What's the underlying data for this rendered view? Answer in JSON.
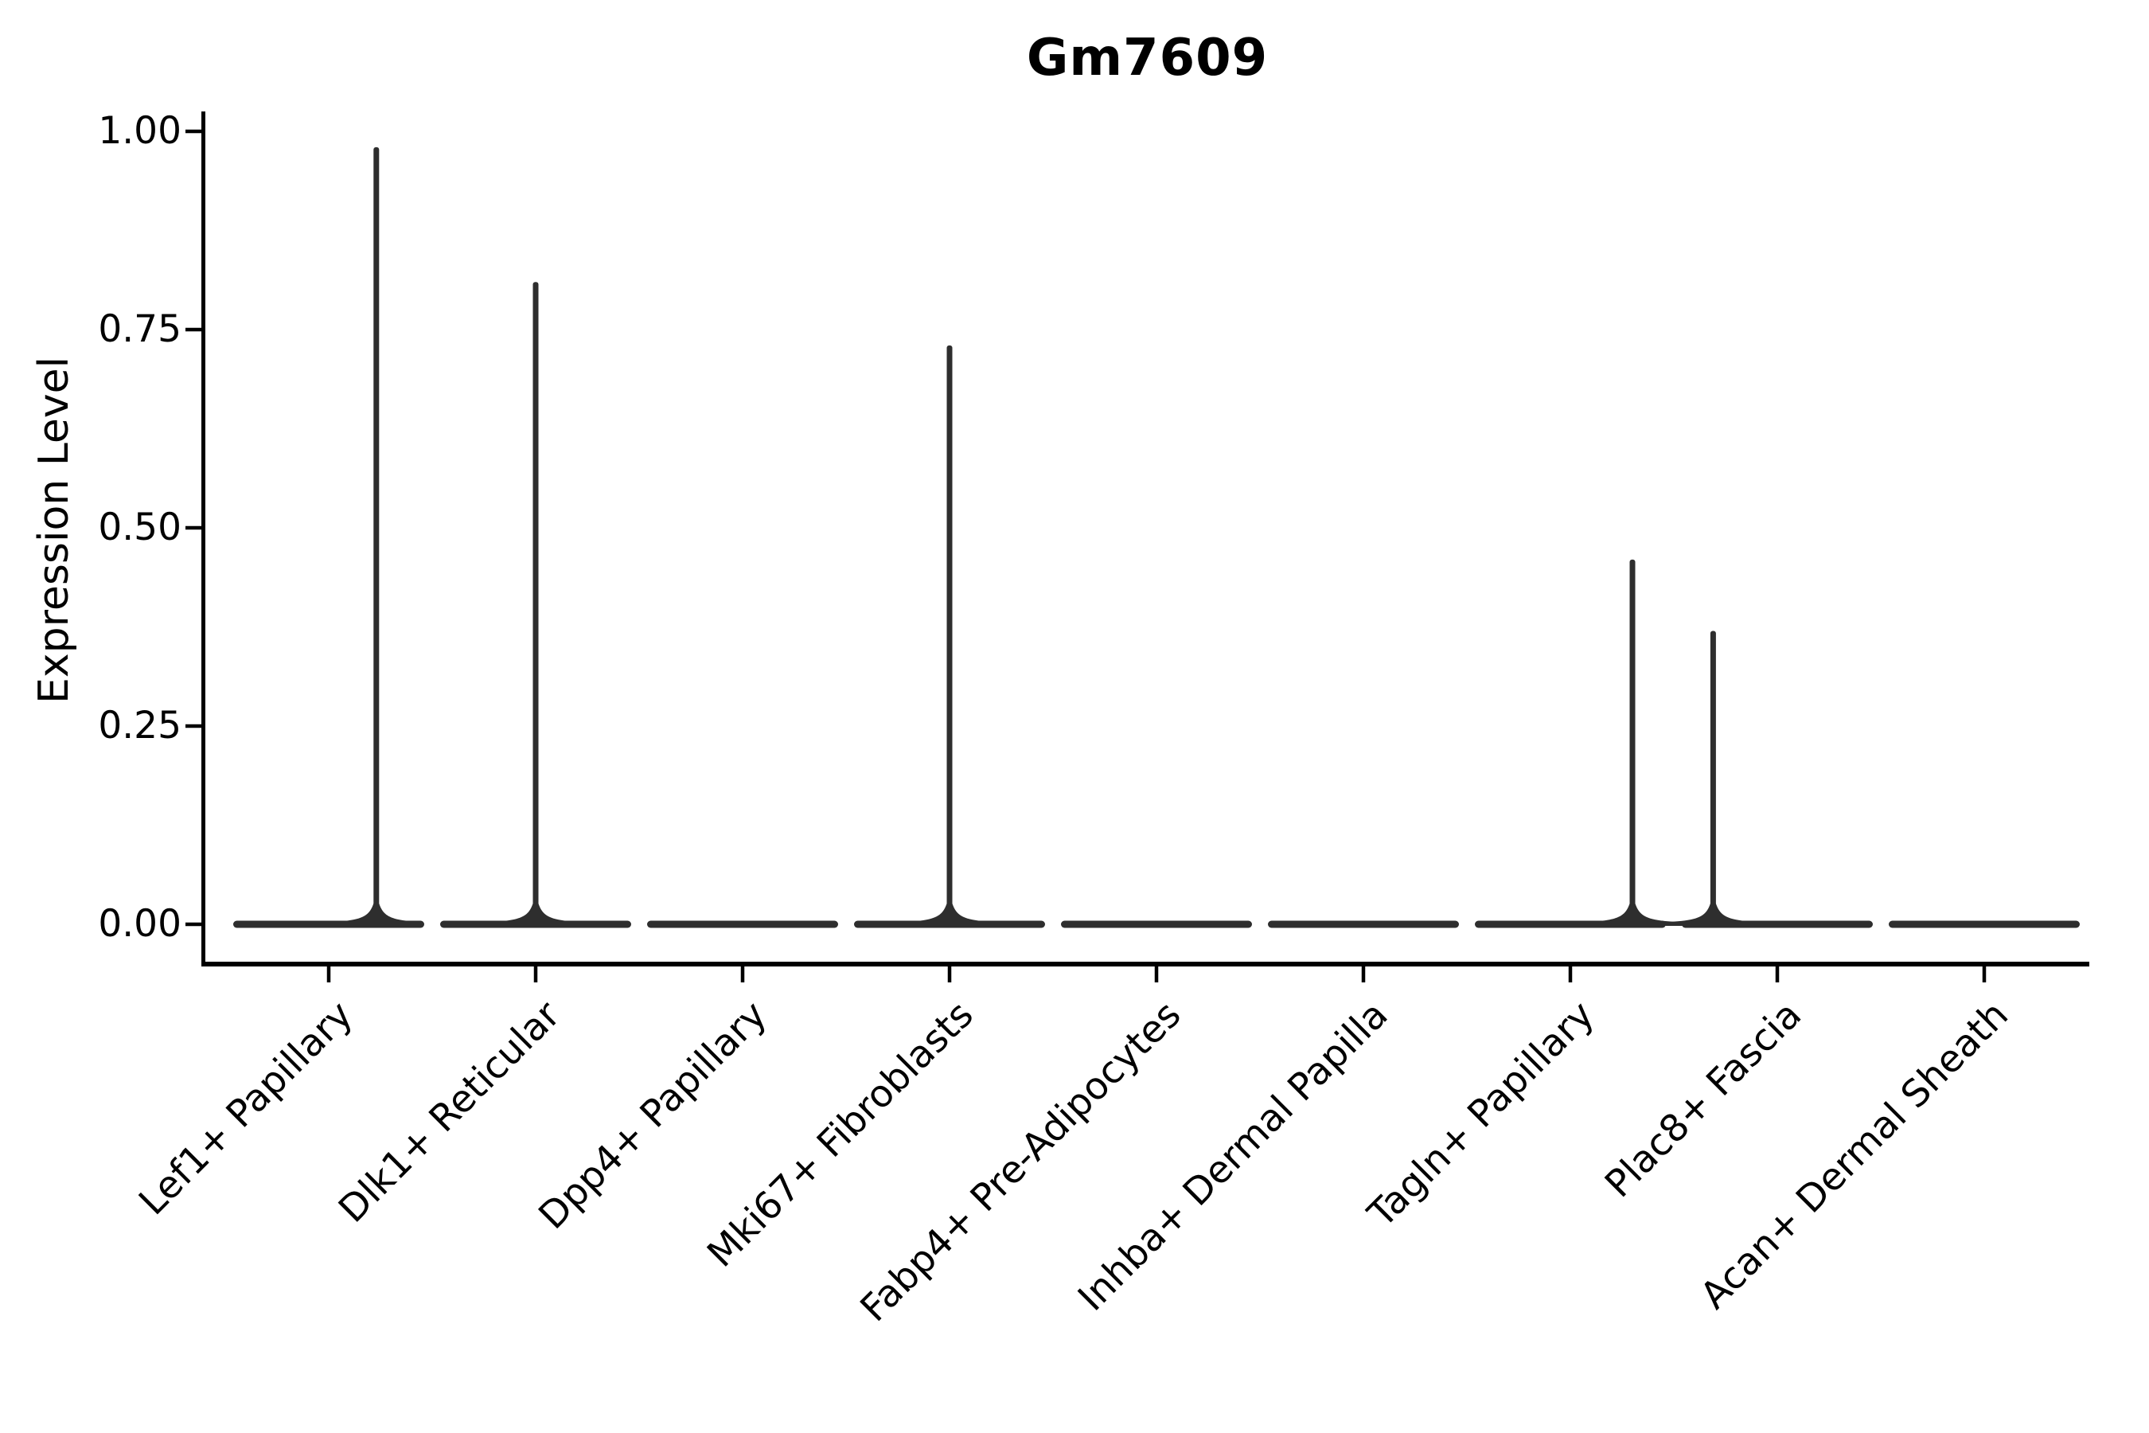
{
  "title": "Gm7609",
  "axes": {
    "y_label": "Expression Level",
    "y_ticks": [
      {
        "label": "1.00",
        "value": 1.0
      },
      {
        "label": "0.75",
        "value": 0.75
      },
      {
        "label": "0.50",
        "value": 0.5
      },
      {
        "label": "0.25",
        "value": 0.25
      },
      {
        "label": "0.00",
        "value": 0.0
      }
    ]
  },
  "colors": {
    "ink": "#000000",
    "violin": "#2e2e2e",
    "background": "#ffffff"
  },
  "chart_data": {
    "type": "violin",
    "title": "Gm7609",
    "xlabel": "",
    "ylabel": "Expression Level",
    "ylim": [
      0,
      1.0
    ],
    "y_tick_values": [
      0,
      0.25,
      0.5,
      0.75,
      1.0
    ],
    "grid": false,
    "legend": "none",
    "categories": [
      "Lef1+ Papillary",
      "Dlk1+ Reticular",
      "Dpp4+ Papillary",
      "Mki67+ Fibroblasts",
      "Fabp4+ Pre-Adipocytes",
      "Inhba+ Dermal Papilla",
      "Tagln+ Papillary",
      "Plac8+ Fascia",
      "Acan+ Dermal Sheath"
    ],
    "violins": [
      {
        "category": "Lef1+ Papillary",
        "baseline_mass_at_zero": true,
        "max_expression": 0.98,
        "spike_offset_frac": 0.23
      },
      {
        "category": "Dlk1+ Reticular",
        "baseline_mass_at_zero": true,
        "max_expression": 0.81,
        "spike_offset_frac": 0.0
      },
      {
        "category": "Dpp4+ Papillary",
        "baseline_mass_at_zero": true,
        "max_expression": 0.0,
        "spike_offset_frac": 0.0
      },
      {
        "category": "Mki67+ Fibroblasts",
        "baseline_mass_at_zero": true,
        "max_expression": 0.73,
        "spike_offset_frac": 0.0
      },
      {
        "category": "Fabp4+ Pre-Adipocytes",
        "baseline_mass_at_zero": true,
        "max_expression": 0.0,
        "spike_offset_frac": 0.0
      },
      {
        "category": "Inhba+ Dermal Papilla",
        "baseline_mass_at_zero": true,
        "max_expression": 0.0,
        "spike_offset_frac": 0.0
      },
      {
        "category": "Tagln+ Papillary",
        "baseline_mass_at_zero": true,
        "max_expression": 0.46,
        "spike_offset_frac": 0.3
      },
      {
        "category": "Plac8+ Fascia",
        "baseline_mass_at_zero": true,
        "max_expression": 0.37,
        "spike_offset_frac": -0.31
      },
      {
        "category": "Acan+ Dermal Sheath",
        "baseline_mass_at_zero": true,
        "max_expression": 0.0,
        "spike_offset_frac": 0.0
      }
    ]
  }
}
